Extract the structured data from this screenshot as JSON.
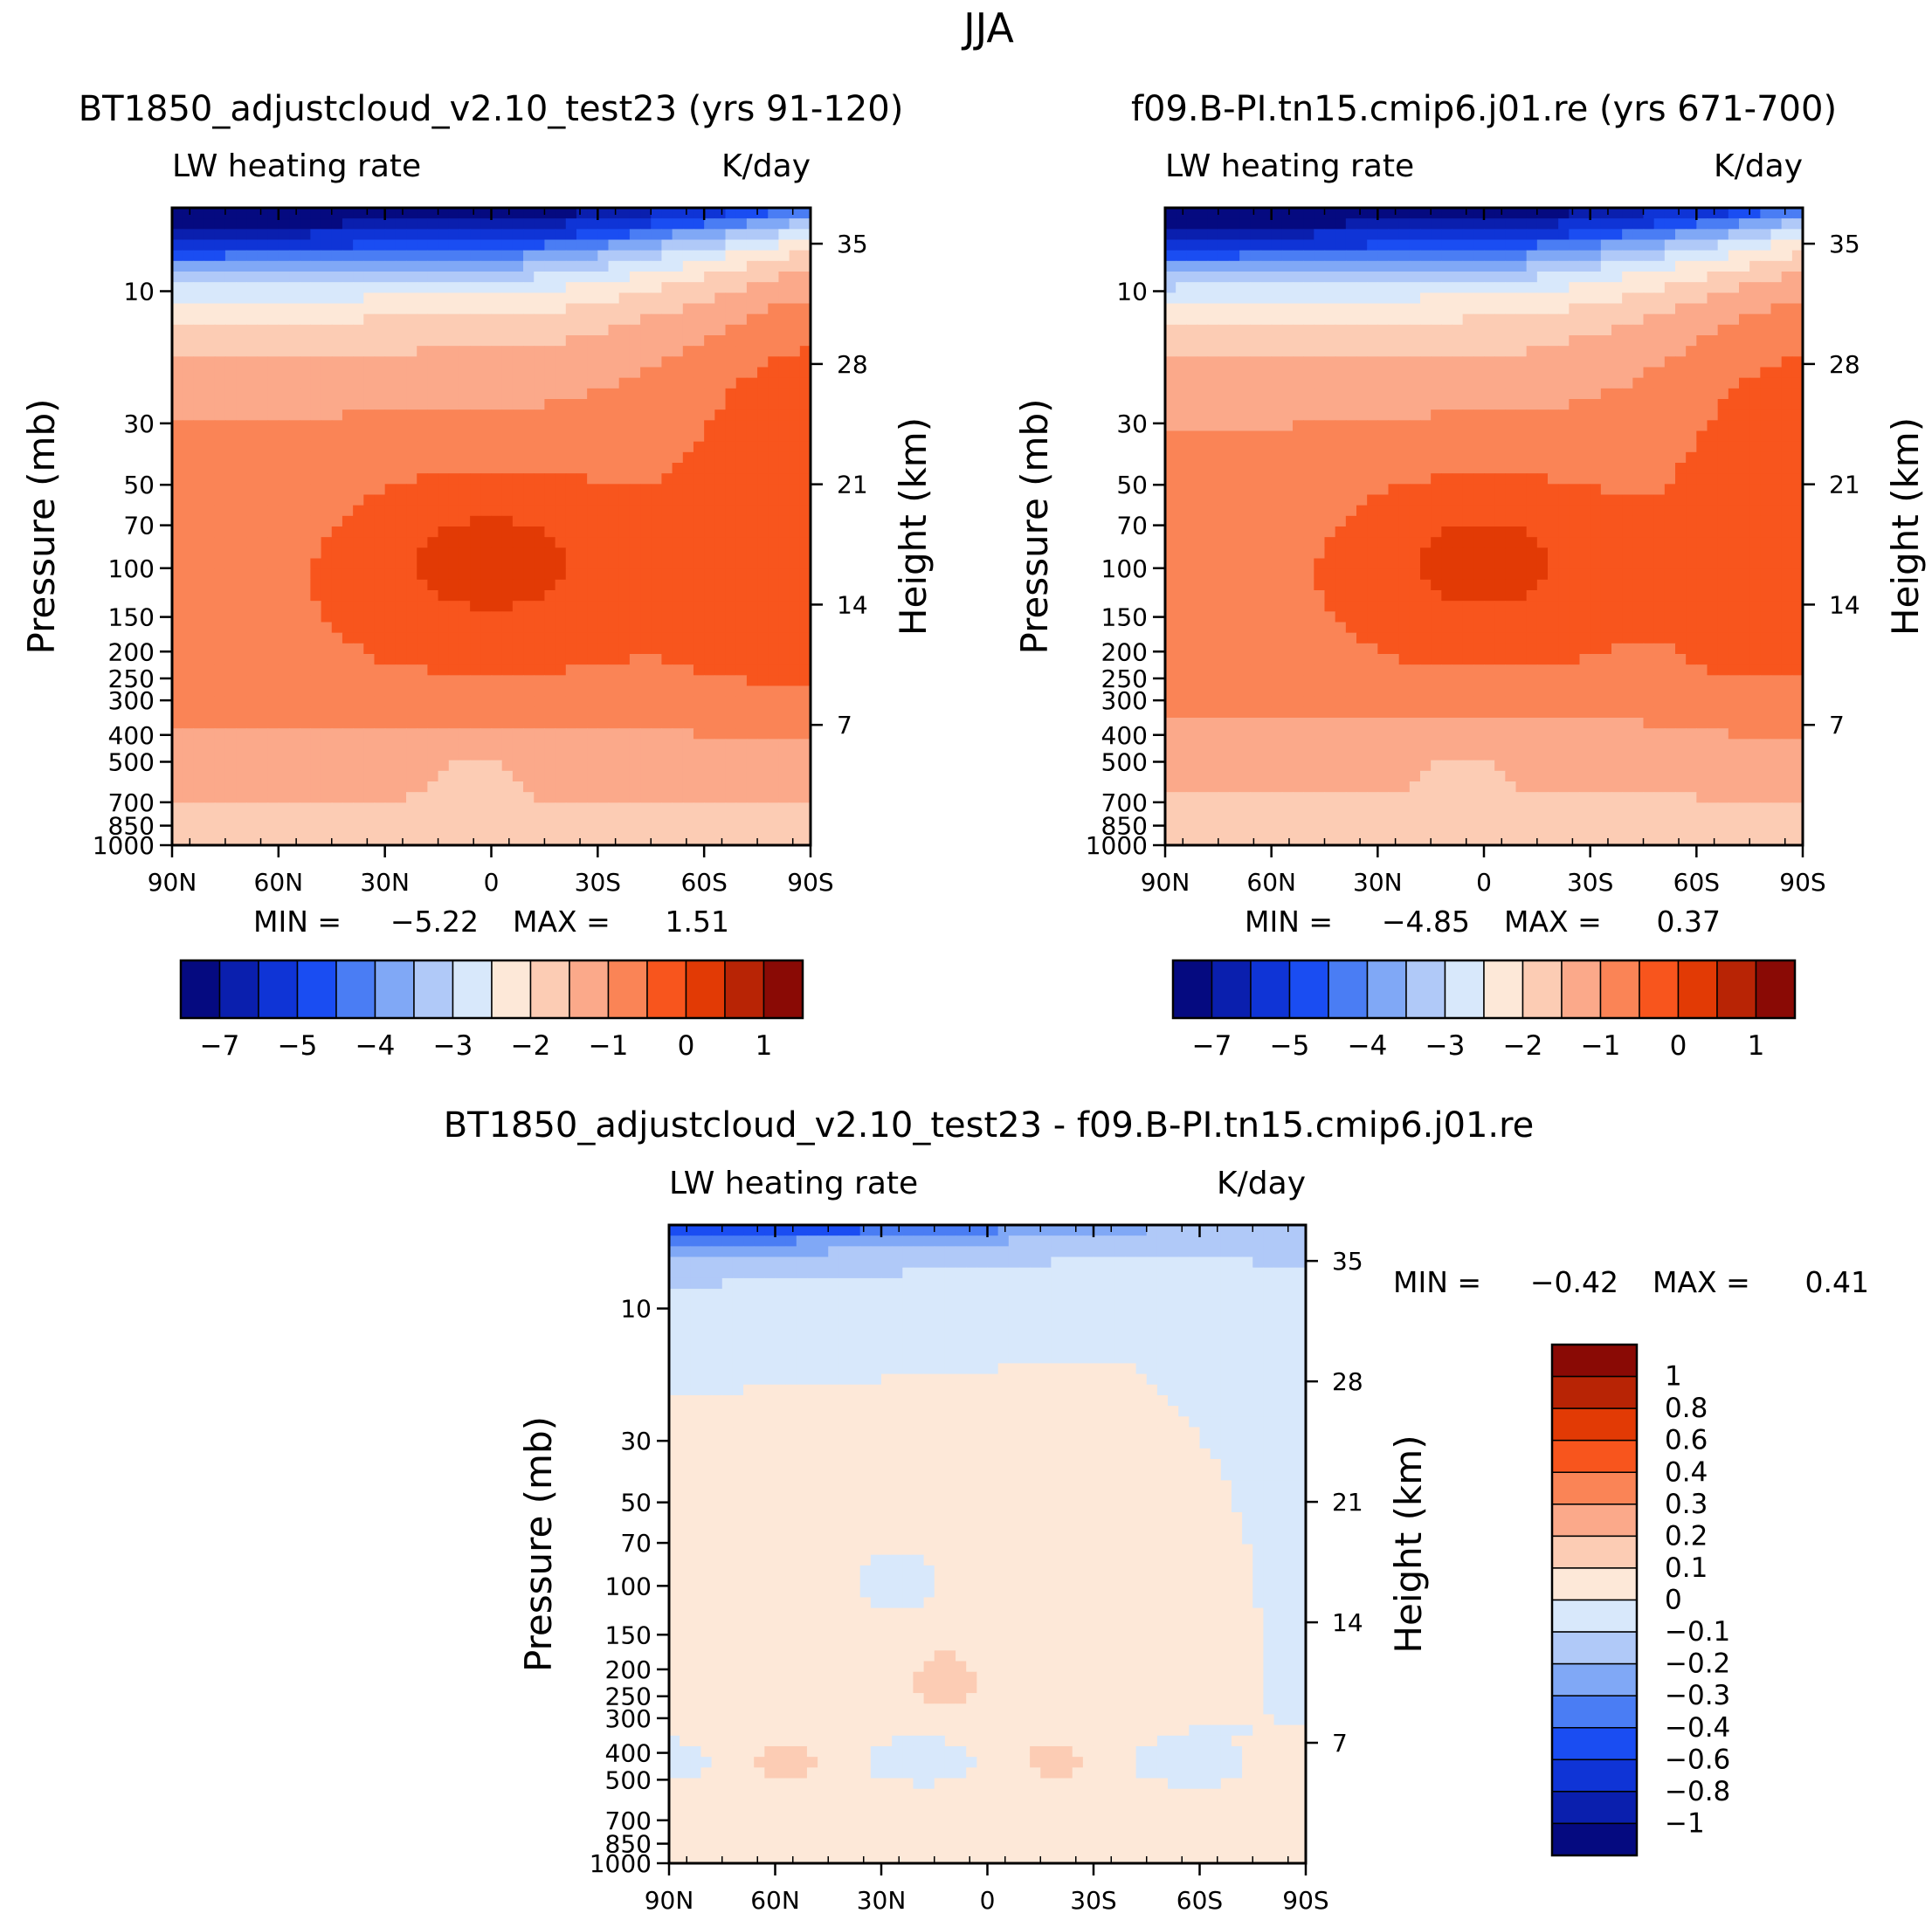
{
  "figure_title": "JJA",
  "colors": {
    "abs_scale": [
      "#050a80",
      "#0a1fae",
      "#0f34d6",
      "#1a4df2",
      "#4a7df4",
      "#80a8f6",
      "#b0c9f8",
      "#d8e8fb",
      "#fde8d8",
      "#fcccb4",
      "#fba98a",
      "#fa8456",
      "#f8551d",
      "#e23a05",
      "#b82405",
      "#8a0a05"
    ],
    "diff_scale": [
      "#050a80",
      "#0a1fae",
      "#0f34d6",
      "#1a4df2",
      "#4a7df4",
      "#80a8f6",
      "#b0c9f8",
      "#d8e8fb",
      "#fde8d8",
      "#fcccb4",
      "#fba98a",
      "#fa8456",
      "#f8551d",
      "#e23a05",
      "#b82405",
      "#8a0a05"
    ]
  },
  "chart_data": [
    {
      "type": "heatmap",
      "title": "BT1850_adjustcloud_v2.10_test23 (yrs 91-120)",
      "variable": "LW heating rate",
      "units": "K/day",
      "ylabel": "Pressure (mb)",
      "ylabel_right": "Height (km)",
      "x_ticks": [
        "90N",
        "60N",
        "30N",
        "0",
        "30S",
        "60S",
        "90S"
      ],
      "y_ticks": [
        "10",
        "30",
        "50",
        "70",
        "100",
        "150",
        "200",
        "250",
        "300",
        "400",
        "500",
        "700",
        "850",
        "1000"
      ],
      "y_right_ticks": [
        "35",
        "28",
        "21",
        "14",
        "7"
      ],
      "min_label": "MIN =",
      "min_value": "-5.22",
      "max_label": "MAX =",
      "max_value": "1.51",
      "colorbar_ticks": [
        "-7",
        "-5",
        "-4",
        "-3",
        "-2",
        "-1",
        "0",
        "1"
      ]
    },
    {
      "type": "heatmap",
      "title": "f09.B-PI.tn15.cmip6.j01.re (yrs 671-700)",
      "variable": "LW heating rate",
      "units": "K/day",
      "ylabel": "Pressure (mb)",
      "ylabel_right": "Height (km)",
      "x_ticks": [
        "90N",
        "60N",
        "30N",
        "0",
        "30S",
        "60S",
        "90S"
      ],
      "y_ticks": [
        "10",
        "30",
        "50",
        "70",
        "100",
        "150",
        "200",
        "250",
        "300",
        "400",
        "500",
        "700",
        "850",
        "1000"
      ],
      "y_right_ticks": [
        "35",
        "28",
        "21",
        "14",
        "7"
      ],
      "min_label": "MIN =",
      "min_value": "-4.85",
      "max_label": "MAX =",
      "max_value": "0.37",
      "colorbar_ticks": [
        "-7",
        "-5",
        "-4",
        "-3",
        "-2",
        "-1",
        "0",
        "1"
      ]
    },
    {
      "type": "heatmap",
      "title": "BT1850_adjustcloud_v2.10_test23 - f09.B-PI.tn15.cmip6.j01.re",
      "variable": "LW heating rate",
      "units": "K/day",
      "ylabel": "Pressure (mb)",
      "ylabel_right": "Height (km)",
      "x_ticks": [
        "90N",
        "60N",
        "30N",
        "0",
        "30S",
        "60S",
        "90S"
      ],
      "y_ticks": [
        "10",
        "30",
        "50",
        "70",
        "100",
        "150",
        "200",
        "250",
        "300",
        "400",
        "500",
        "700",
        "850",
        "1000"
      ],
      "y_right_ticks": [
        "35",
        "28",
        "21",
        "14",
        "7"
      ],
      "min_label": "MIN =",
      "min_value": "-0.42",
      "max_label": "MAX =",
      "max_value": "0.41",
      "colorbar_ticks": [
        "1",
        "0.8",
        "0.6",
        "0.4",
        "0.3",
        "0.2",
        "0.1",
        "0",
        "-0.1",
        "-0.2",
        "-0.3",
        "-0.4",
        "-0.6",
        "-0.8",
        "-1"
      ]
    }
  ]
}
